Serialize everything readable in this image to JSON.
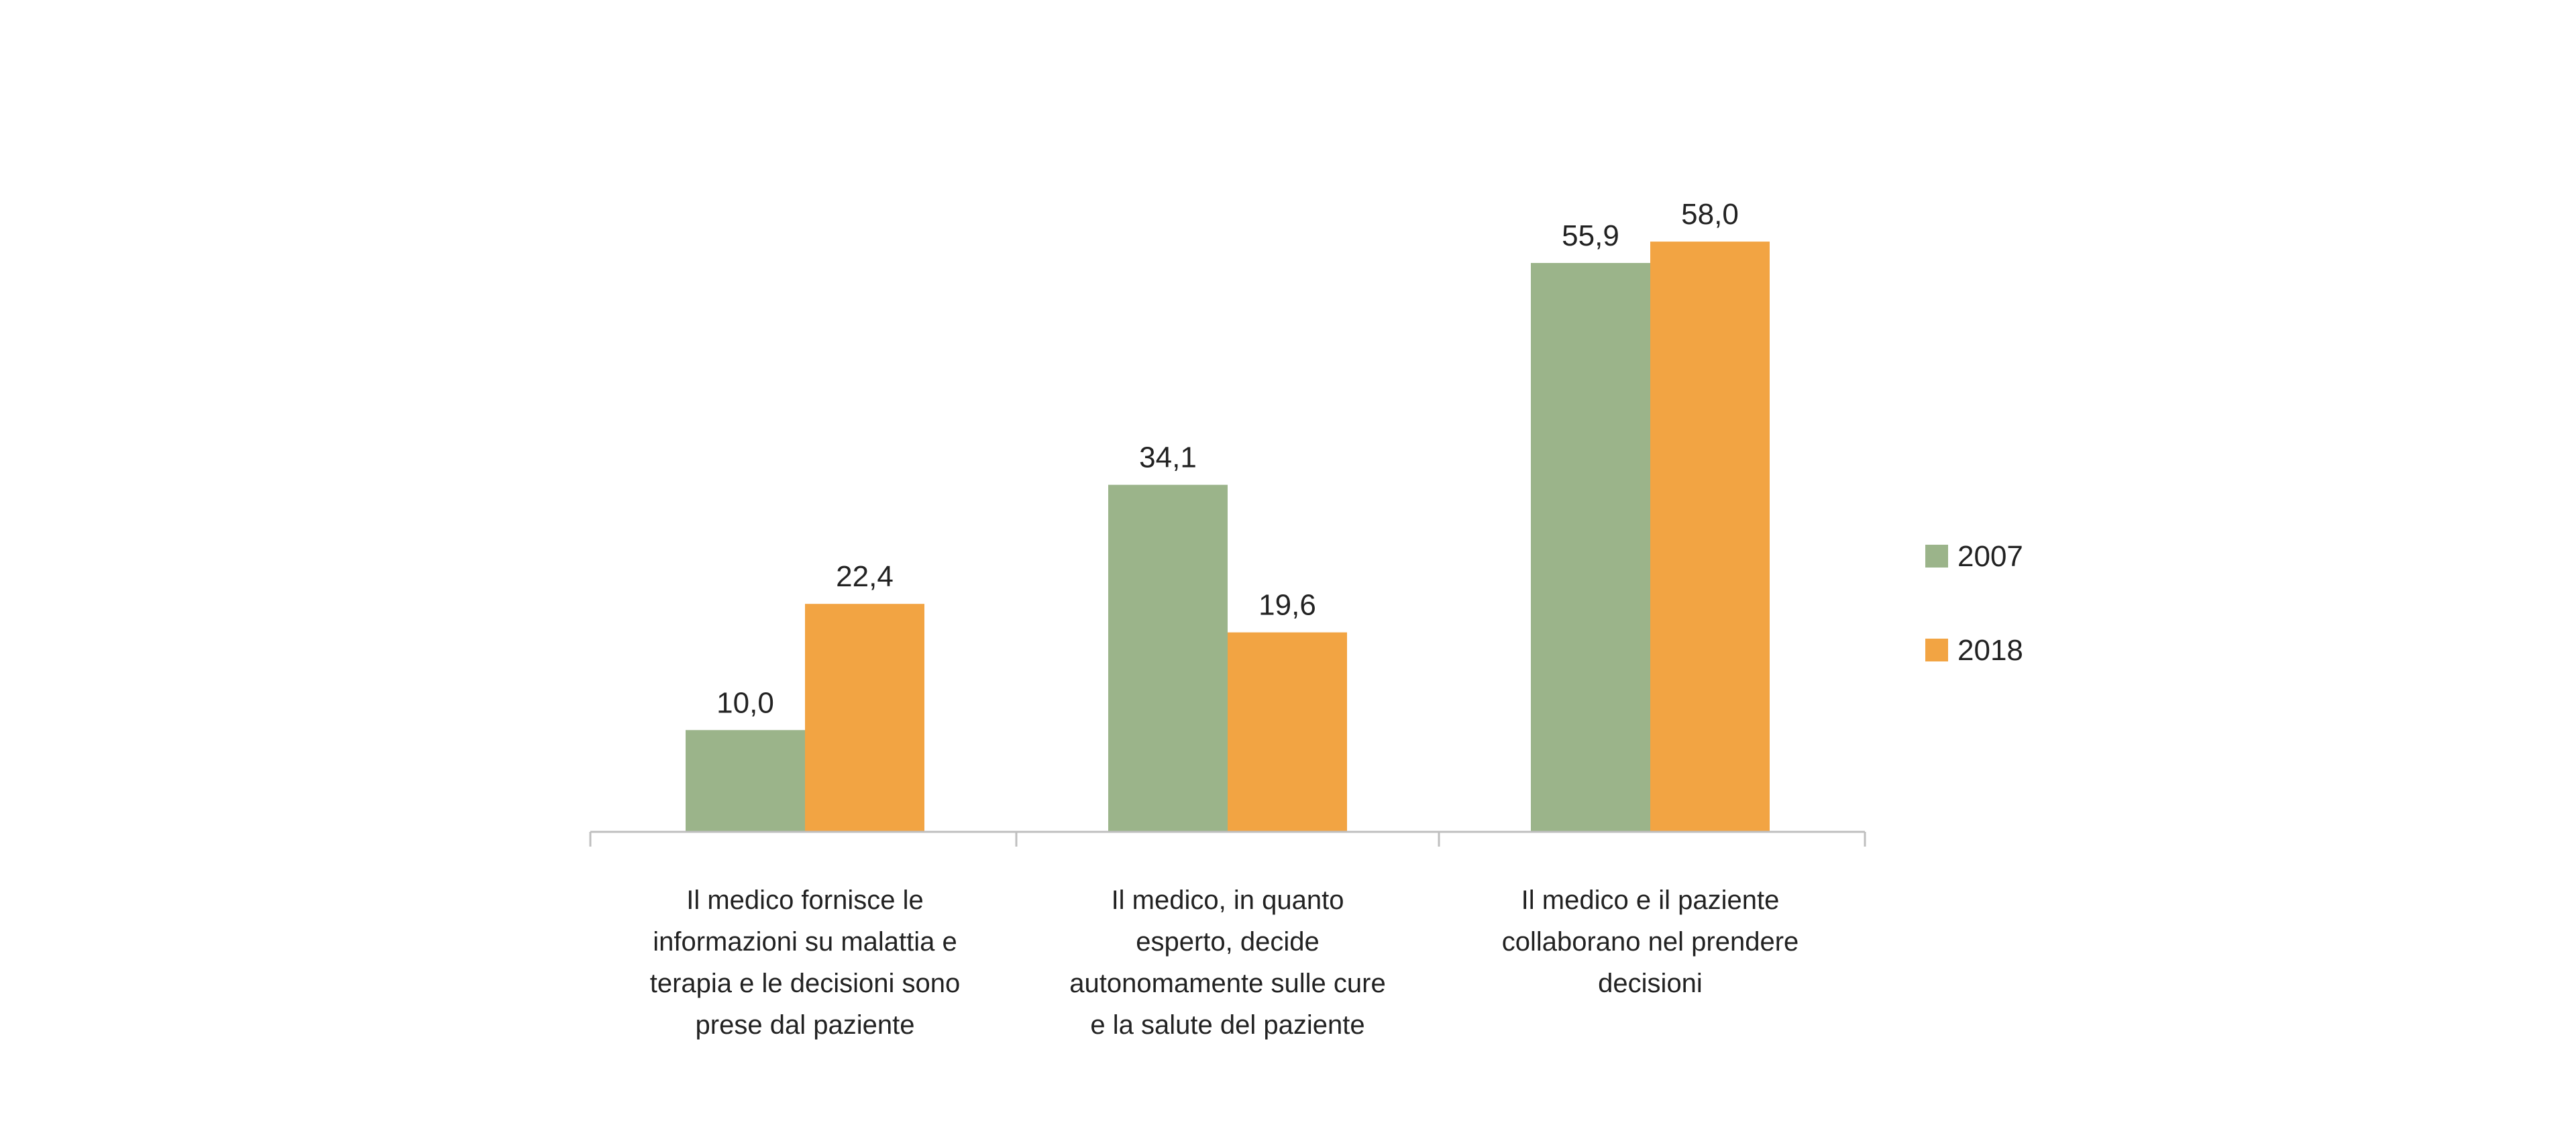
{
  "chart_data": {
    "type": "bar",
    "title": "",
    "xlabel": "",
    "ylabel": "",
    "ylim": [
      0,
      70
    ],
    "grid": false,
    "legend": {
      "position": "right"
    },
    "categories": [
      [
        "Il medico fornisce le",
        "informazioni su malattia e",
        "terapia e le decisioni sono",
        "prese dal paziente"
      ],
      [
        "Il medico, in quanto",
        "esperto, decide",
        "autonomamente sulle cure",
        "e la salute del paziente"
      ],
      [
        "Il medico e il paziente",
        "collaborano nel prendere",
        "decisioni"
      ]
    ],
    "series": [
      {
        "name": "2007",
        "color": "#9bb48a",
        "values": [
          10.0,
          34.1,
          55.9
        ],
        "labels": [
          "10,0",
          "34,1",
          "55,9"
        ]
      },
      {
        "name": "2018",
        "color": "#f2a443",
        "values": [
          22.4,
          19.6,
          58.0
        ],
        "labels": [
          "22,4",
          "19,6",
          "58,0"
        ]
      }
    ]
  }
}
